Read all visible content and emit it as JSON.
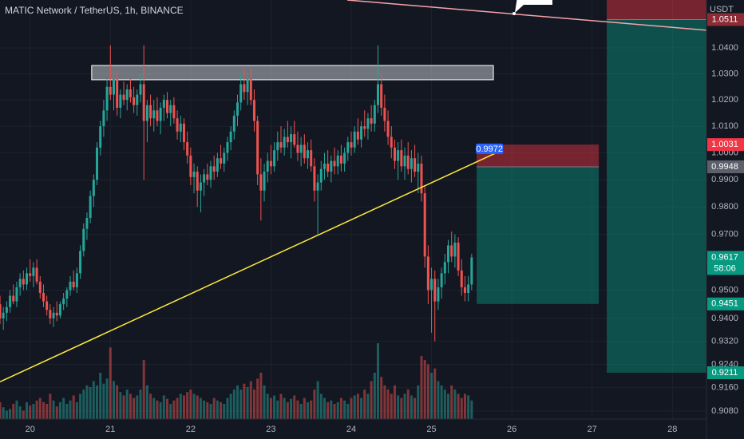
{
  "chart_data": {
    "type": "candlestick",
    "title": "MATIC Network / TetherUS, 1h, BINANCE",
    "y_axis_unit": "USDT",
    "log_scale": true,
    "grid": true,
    "up_color": "#26a69a",
    "down_color": "#ef5350",
    "xlim": [
      0,
      211.2
    ],
    "ylim": [
      0.9053,
      1.0588
    ],
    "xticks": [
      {
        "value": 9,
        "label": "20"
      },
      {
        "value": 33,
        "label": "21"
      },
      {
        "value": 57,
        "label": "22"
      },
      {
        "value": 81,
        "label": "23"
      },
      {
        "value": 105,
        "label": "24"
      },
      {
        "value": 129,
        "label": "25"
      },
      {
        "value": 153,
        "label": "26"
      },
      {
        "value": 177,
        "label": "27"
      },
      {
        "value": 201,
        "label": "28"
      }
    ],
    "yticks": [
      {
        "value": 1.04,
        "label": "1.0400"
      },
      {
        "value": 1.03,
        "label": "1.0300"
      },
      {
        "value": 1.02,
        "label": "1.0200"
      },
      {
        "value": 1.01,
        "label": "1.0100"
      },
      {
        "value": 1.0,
        "label": "1.0000"
      },
      {
        "value": 0.99,
        "label": "0.9900"
      },
      {
        "value": 0.98,
        "label": "0.9800"
      },
      {
        "value": 0.97,
        "label": "0.9700"
      },
      {
        "value": 0.95,
        "label": "0.9500"
      },
      {
        "value": 0.94,
        "label": "0.9400"
      },
      {
        "value": 0.932,
        "label": "0.9320"
      },
      {
        "value": 0.924,
        "label": "0.9240"
      },
      {
        "value": 0.916,
        "label": "0.9160"
      },
      {
        "value": 0.908,
        "label": "0.9080"
      }
    ],
    "x": [
      0,
      1,
      2,
      3,
      4,
      5,
      6,
      7,
      8,
      9,
      10,
      11,
      12,
      13,
      14,
      15,
      16,
      17,
      18,
      19,
      20,
      21,
      22,
      23,
      24,
      25,
      26,
      27,
      28,
      29,
      30,
      31,
      32,
      33,
      34,
      35,
      36,
      37,
      38,
      39,
      40,
      41,
      42,
      43,
      44,
      45,
      46,
      47,
      48,
      49,
      50,
      51,
      52,
      53,
      54,
      55,
      56,
      57,
      58,
      59,
      60,
      61,
      62,
      63,
      64,
      65,
      66,
      67,
      68,
      69,
      70,
      71,
      72,
      73,
      74,
      75,
      76,
      77,
      78,
      79,
      80,
      81,
      82,
      83,
      84,
      85,
      86,
      87,
      88,
      89,
      90,
      91,
      92,
      93,
      94,
      95,
      96,
      97,
      98,
      99,
      100,
      101,
      102,
      103,
      104,
      105,
      106,
      107,
      108,
      109,
      110,
      111,
      112,
      113,
      114,
      115,
      116,
      117,
      118,
      119,
      120,
      121,
      122,
      123,
      124,
      125,
      126,
      127,
      128,
      129,
      130,
      131,
      132,
      133,
      134,
      135,
      136,
      137,
      138,
      139,
      140,
      141
    ],
    "open": [
      0.945,
      0.94,
      0.942,
      0.944,
      0.948,
      0.946,
      0.951,
      0.954,
      0.952,
      0.956,
      0.955,
      0.958,
      0.953,
      0.949,
      0.946,
      0.943,
      0.94,
      0.942,
      0.941,
      0.945,
      0.947,
      0.95,
      0.953,
      0.951,
      0.956,
      0.964,
      0.972,
      0.976,
      0.984,
      0.99,
      1.002,
      1.01,
      1.016,
      1.025,
      1.022,
      1.028,
      1.017,
      1.022,
      1.02,
      1.024,
      1.021,
      1.018,
      1.022,
      1.026,
      1.012,
      1.018,
      1.013,
      1.016,
      1.012,
      1.017,
      1.02,
      1.015,
      1.018,
      1.013,
      1.008,
      1.011,
      1.004,
      0.999,
      0.991,
      0.993,
      0.986,
      0.989,
      0.992,
      0.99,
      0.995,
      0.993,
      0.998,
      0.996,
      1.0,
      1.004,
      1.008,
      1.014,
      1.019,
      1.026,
      1.023,
      1.028,
      1.02,
      1.012,
      0.992,
      0.986,
      0.993,
      0.997,
      0.995,
      1.001,
      1.004,
      1.002,
      1.006,
      1.004,
      1.007,
      1.003,
      1.0,
      1.003,
      0.998,
      1.001,
      0.995,
      0.986,
      0.989,
      0.994,
      0.996,
      0.993,
      0.997,
      0.995,
      0.999,
      0.996,
      1.0,
      1.004,
      1.002,
      1.008,
      1.005,
      1.01,
      1.009,
      1.013,
      1.011,
      1.018,
      1.026,
      1.017,
      1.012,
      1.006,
      1.002,
      0.997,
      1.001,
      0.995,
      0.999,
      0.994,
      0.998,
      0.993,
      0.996,
      0.985,
      0.962,
      0.95,
      0.954,
      0.946,
      0.951,
      0.956,
      0.96,
      0.966,
      0.962,
      0.967,
      0.957,
      0.951,
      0.949,
      0.952
    ],
    "high": [
      0.948,
      0.944,
      0.946,
      0.95,
      0.952,
      0.953,
      0.956,
      0.957,
      0.958,
      0.961,
      0.96,
      0.961,
      0.955,
      0.952,
      0.948,
      0.945,
      0.944,
      0.946,
      0.946,
      0.949,
      0.951,
      0.955,
      0.957,
      0.958,
      0.966,
      0.974,
      0.978,
      0.986,
      0.992,
      1.004,
      1.012,
      1.02,
      1.028,
      1.041,
      1.031,
      1.031,
      1.024,
      1.027,
      1.026,
      1.028,
      1.025,
      1.024,
      1.03,
      1.041,
      1.02,
      1.022,
      1.02,
      1.021,
      1.019,
      1.022,
      1.023,
      1.02,
      1.021,
      1.016,
      1.014,
      1.013,
      1.008,
      1.002,
      0.996,
      0.995,
      0.992,
      0.994,
      0.996,
      0.997,
      0.999,
      1.0,
      1.003,
      1.002,
      1.006,
      1.01,
      1.016,
      1.022,
      1.03,
      1.032,
      1.031,
      1.032,
      1.024,
      1.014,
      0.998,
      0.996,
      1.0,
      1.003,
      1.004,
      1.008,
      1.01,
      1.009,
      1.012,
      1.01,
      1.012,
      1.008,
      1.006,
      1.007,
      1.004,
      1.005,
      0.998,
      0.992,
      0.997,
      1.0,
      1.001,
      0.999,
      1.002,
      1.001,
      1.003,
      1.002,
      1.006,
      1.008,
      1.01,
      1.013,
      1.012,
      1.016,
      1.015,
      1.018,
      1.02,
      1.041,
      1.03,
      1.022,
      1.016,
      1.01,
      1.005,
      1.004,
      1.005,
      1.002,
      1.004,
      1.001,
      1.003,
      1.0,
      0.999,
      0.988,
      0.966,
      0.958,
      0.957,
      0.954,
      0.958,
      0.963,
      0.968,
      0.971,
      0.97,
      0.969,
      0.961,
      0.955,
      0.955,
      0.963
    ],
    "low": [
      0.938,
      0.936,
      0.939,
      0.942,
      0.945,
      0.944,
      0.948,
      0.95,
      0.95,
      0.953,
      0.951,
      0.952,
      0.947,
      0.944,
      0.941,
      0.938,
      0.937,
      0.939,
      0.94,
      0.943,
      0.944,
      0.948,
      0.95,
      0.949,
      0.954,
      0.962,
      0.968,
      0.974,
      0.98,
      0.988,
      0.999,
      1.006,
      1.012,
      1.02,
      1.016,
      1.014,
      1.013,
      1.018,
      1.016,
      1.019,
      1.015,
      1.014,
      1.019,
      0.99,
      1.004,
      1.01,
      1.008,
      1.01,
      1.007,
      1.012,
      1.013,
      1.01,
      1.011,
      1.005,
      1.004,
      1.001,
      0.996,
      0.988,
      0.985,
      0.98,
      0.978,
      0.984,
      0.988,
      0.987,
      0.99,
      0.991,
      0.994,
      0.993,
      0.997,
      1.001,
      1.005,
      1.01,
      1.016,
      1.02,
      1.018,
      1.018,
      1.008,
      0.988,
      0.975,
      0.982,
      0.989,
      0.992,
      0.993,
      0.997,
      1.0,
      0.999,
      1.002,
      0.998,
      1.002,
      0.997,
      0.995,
      0.996,
      0.994,
      0.993,
      0.982,
      0.97,
      0.986,
      0.99,
      0.991,
      0.989,
      0.992,
      0.992,
      0.993,
      0.993,
      0.997,
      0.999,
      1.0,
      1.003,
      1.002,
      1.006,
      1.005,
      1.008,
      1.008,
      1.015,
      1.014,
      1.008,
      1.003,
      0.998,
      0.994,
      0.99,
      0.993,
      0.99,
      0.992,
      0.989,
      0.991,
      0.985,
      0.982,
      0.958,
      0.945,
      0.935,
      0.932,
      0.943,
      0.947,
      0.952,
      0.956,
      0.96,
      0.958,
      0.955,
      0.948,
      0.946,
      0.946,
      0.95
    ],
    "close": [
      0.94,
      0.942,
      0.944,
      0.948,
      0.946,
      0.951,
      0.954,
      0.952,
      0.956,
      0.955,
      0.958,
      0.953,
      0.949,
      0.946,
      0.943,
      0.94,
      0.942,
      0.941,
      0.945,
      0.947,
      0.95,
      0.953,
      0.951,
      0.956,
      0.964,
      0.972,
      0.976,
      0.984,
      0.99,
      1.002,
      1.01,
      1.016,
      1.025,
      1.022,
      1.028,
      1.017,
      1.022,
      1.02,
      1.024,
      1.021,
      1.018,
      1.022,
      1.026,
      1.012,
      1.018,
      1.013,
      1.016,
      1.012,
      1.017,
      1.02,
      1.015,
      1.018,
      1.013,
      1.008,
      1.011,
      1.004,
      0.999,
      0.991,
      0.993,
      0.986,
      0.989,
      0.992,
      0.99,
      0.995,
      0.993,
      0.998,
      0.996,
      1.0,
      1.004,
      1.008,
      1.014,
      1.019,
      1.026,
      1.023,
      1.028,
      1.02,
      1.012,
      0.992,
      0.986,
      0.993,
      0.997,
      0.995,
      1.001,
      1.004,
      1.002,
      1.006,
      1.004,
      1.007,
      1.003,
      1.0,
      1.003,
      0.998,
      1.001,
      0.995,
      0.986,
      0.989,
      0.994,
      0.996,
      0.993,
      0.997,
      0.995,
      0.999,
      0.996,
      1.0,
      1.004,
      1.002,
      1.008,
      1.005,
      1.01,
      1.009,
      1.013,
      1.011,
      1.018,
      1.026,
      1.017,
      1.012,
      1.006,
      1.002,
      0.997,
      1.001,
      0.995,
      0.999,
      0.994,
      0.998,
      0.993,
      0.996,
      0.985,
      0.962,
      0.95,
      0.954,
      0.946,
      0.951,
      0.956,
      0.96,
      0.966,
      0.962,
      0.967,
      0.957,
      0.951,
      0.949,
      0.952,
      0.9617
    ],
    "volume": [
      20,
      14,
      10,
      12,
      18,
      22,
      15,
      10,
      20,
      16,
      18,
      22,
      25,
      20,
      18,
      30,
      22,
      15,
      20,
      25,
      18,
      22,
      28,
      20,
      30,
      35,
      40,
      38,
      45,
      40,
      55,
      42,
      48,
      85,
      45,
      40,
      32,
      28,
      35,
      30,
      25,
      28,
      35,
      70,
      40,
      30,
      25,
      22,
      20,
      28,
      24,
      18,
      22,
      25,
      30,
      28,
      32,
      35,
      30,
      28,
      25,
      22,
      20,
      18,
      25,
      22,
      20,
      18,
      25,
      30,
      35,
      40,
      35,
      42,
      38,
      45,
      35,
      48,
      55,
      40,
      30,
      25,
      28,
      22,
      30,
      25,
      20,
      24,
      28,
      22,
      18,
      25,
      20,
      22,
      35,
      45,
      30,
      25,
      20,
      22,
      18,
      20,
      25,
      22,
      18,
      25,
      28,
      30,
      25,
      35,
      30,
      45,
      55,
      90,
      50,
      40,
      35,
      30,
      40,
      28,
      25,
      30,
      35,
      28,
      25,
      40,
      75,
      70,
      65,
      55,
      60,
      45,
      40,
      35,
      30,
      40,
      35,
      30,
      25,
      30,
      28,
      22
    ],
    "resistance_box": {
      "x": [
        27.4,
        147.5
      ],
      "y": [
        1.0277,
        1.0332
      ]
    },
    "trendline": {
      "x": [
        0,
        149.2
      ],
      "y": [
        0.918,
        1.0005
      ],
      "color": "#ffeb3b",
      "label": {
        "value": 0.9972,
        "label": "0.9972"
      }
    },
    "pink_line": {
      "x": [
        103.8,
        211.2
      ],
      "y": [
        1.0588,
        1.0469
      ],
      "color": "#f7a1a8"
    },
    "positions": [
      {
        "x": [
          142.5,
          179
        ],
        "entry": 0.9948,
        "stop": 1.0031,
        "target": 0.9451
      },
      {
        "x": [
          181.4,
          211.2
        ],
        "entry": 1.0511,
        "target": 0.9211
      }
    ],
    "price_labels": [
      {
        "value": 1.0511,
        "label": "1.0511",
        "color": "#8c2b34"
      },
      {
        "value": 1.0031,
        "label": "1.0031",
        "color": "#f23645"
      },
      {
        "value": 0.9948,
        "label": "0.9948",
        "color": "#5d606b"
      },
      {
        "value": 0.9617,
        "label": "0.9617",
        "color": "#089981"
      },
      {
        "value": 0.9451,
        "label": "0.9451",
        "color": "#089981"
      },
      {
        "value": 0.9211,
        "label": "0.9211",
        "color": "#089981"
      }
    ],
    "countdown": "58:06"
  }
}
